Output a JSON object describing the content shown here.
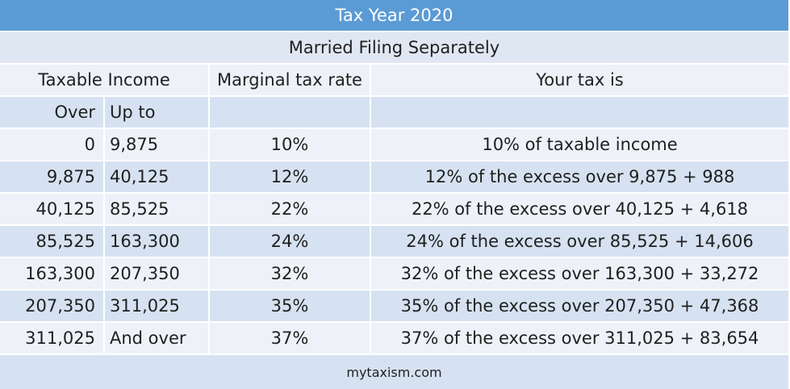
{
  "title": "Tax Year 2020",
  "subtitle": "Married Filing Separately",
  "headers": {
    "taxable_income": "Taxable Income",
    "marginal_rate": "Marginal tax rate",
    "your_tax": "Your tax is",
    "over": "Over",
    "up_to": "Up to"
  },
  "rows": [
    {
      "over": "0",
      "up_to": "9,875",
      "rate": "10%",
      "tax": "10% of taxable income"
    },
    {
      "over": "9,875",
      "up_to": "40,125",
      "rate": "12%",
      "tax": "12% of the excess over 9,875 + 988"
    },
    {
      "over": "40,125",
      "up_to": "85,525",
      "rate": "22%",
      "tax": "22% of the excess over 40,125 + 4,618"
    },
    {
      "over": "85,525",
      "up_to": "163,300",
      "rate": "24%",
      "tax": "24% of the excess over 85,525 + 14,606"
    },
    {
      "over": "163,300",
      "up_to": "207,350",
      "rate": "32%",
      "tax": "32% of the excess over 163,300 + 33,272"
    },
    {
      "over": "207,350",
      "up_to": "311,025",
      "rate": "35%",
      "tax": "35% of the excess over 207,350 + 47,368"
    },
    {
      "over": "311,025",
      "up_to": "And over",
      "rate": "37%",
      "tax": "37% of the excess over 311,025 + 83,654"
    }
  ],
  "footer": "mytaxism.com",
  "colors": {
    "title_bg": "#5b9bd5",
    "row_light": "#eef2f8",
    "row_dark": "#d6e2f1"
  }
}
